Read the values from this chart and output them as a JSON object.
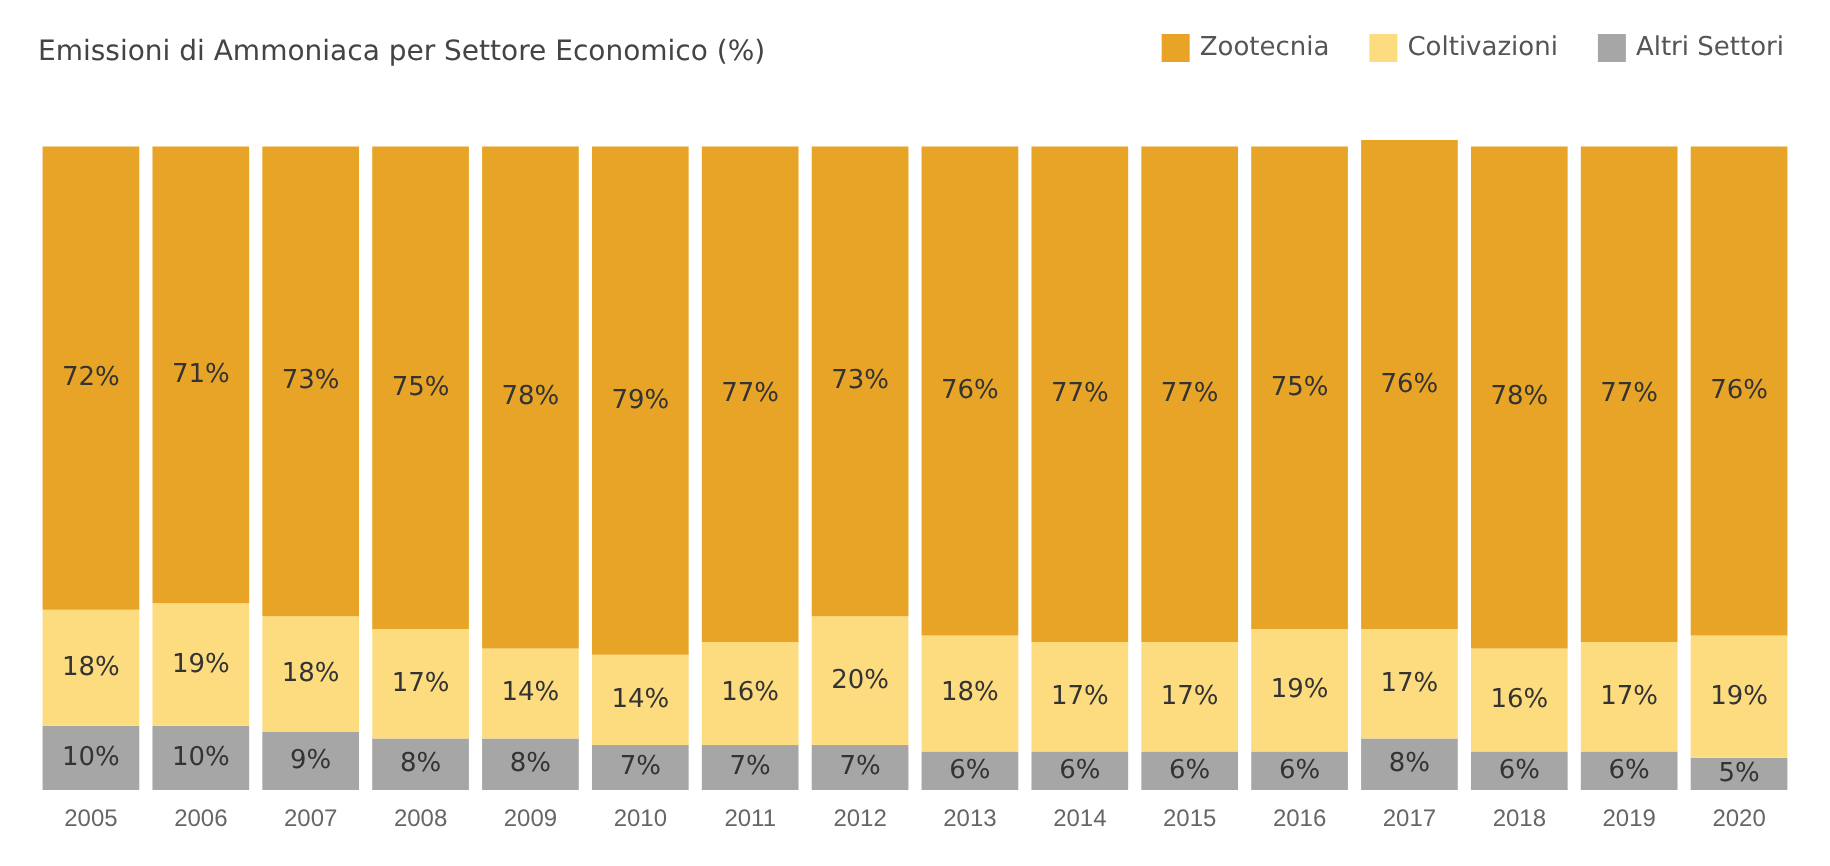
{
  "chart_data": {
    "type": "bar",
    "title": "Emissioni di Ammoniaca per Settore Economico (%)",
    "stacked": true,
    "legend": "top right",
    "categories": [
      "2005",
      "2006",
      "2007",
      "2008",
      "2009",
      "2010",
      "2011",
      "2012",
      "2013",
      "2014",
      "2015",
      "2016",
      "2017",
      "2018",
      "2019",
      "2020"
    ],
    "series": [
      {
        "name": "Altri Settori",
        "color": "#a6a6a6",
        "values": [
          10,
          10,
          9,
          8,
          8,
          7,
          7,
          7,
          6,
          6,
          6,
          6,
          8,
          6,
          6,
          5
        ],
        "value_labels": [
          "10%",
          "10%",
          "9%",
          "8%",
          "8%",
          "7%",
          "7%",
          "7%",
          "6%",
          "6%",
          "6%",
          "6%",
          "8%",
          "6%",
          "6%",
          "5%"
        ]
      },
      {
        "name": "Coltivazioni",
        "color": "#fcdc7f",
        "values": [
          18,
          19,
          18,
          17,
          14,
          14,
          16,
          20,
          18,
          17,
          17,
          19,
          17,
          16,
          17,
          19
        ],
        "value_labels": [
          "18%",
          "19%",
          "18%",
          "17%",
          "14%",
          "14%",
          "16%",
          "20%",
          "18%",
          "17%",
          "17%",
          "19%",
          "17%",
          "16%",
          "17%",
          "19%"
        ]
      },
      {
        "name": "Zootecnia",
        "color": "#e8a427",
        "values": [
          72,
          71,
          73,
          75,
          78,
          79,
          77,
          73,
          76,
          77,
          77,
          75,
          76,
          78,
          77,
          76
        ],
        "value_labels": [
          "72%",
          "71%",
          "73%",
          "75%",
          "78%",
          "79%",
          "77%",
          "73%",
          "76%",
          "77%",
          "77%",
          "75%",
          "76%",
          "78%",
          "77%",
          "76%"
        ]
      }
    ]
  }
}
